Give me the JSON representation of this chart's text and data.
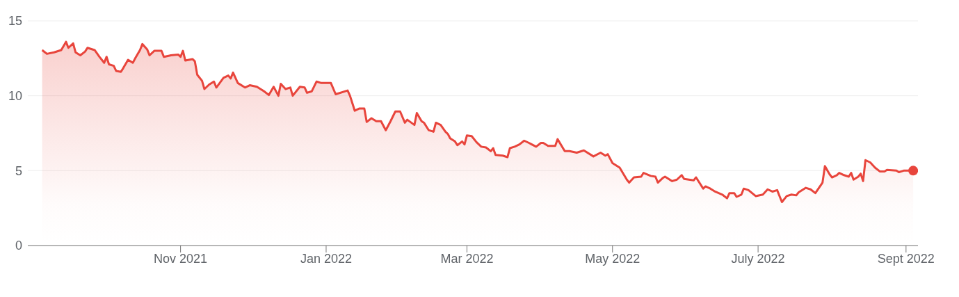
{
  "chart_data": {
    "type": "area",
    "xlim": [
      "2021-08-29",
      "2022-09-06"
    ],
    "ylim": [
      0,
      15
    ],
    "yticks": [
      0,
      5,
      10,
      15
    ],
    "xticks": [
      {
        "value": "2021-11-01",
        "label": "Nov 2021"
      },
      {
        "value": "2022-01-01",
        "label": "Jan 2022"
      },
      {
        "value": "2022-03-01",
        "label": "Mar 2022"
      },
      {
        "value": "2022-05-01",
        "label": "May 2022"
      },
      {
        "value": "2022-07-01",
        "label": "July 2022"
      },
      {
        "value": "2022-09-01",
        "label": "Sept 2022"
      }
    ],
    "grid": "y",
    "series": [
      {
        "color": "#e8453c",
        "x": [
          "2021-09-04",
          "2021-09-06",
          "2021-09-09",
          "2021-09-12",
          "2021-09-14",
          "2021-09-15",
          "2021-09-17",
          "2021-09-18",
          "2021-09-20",
          "2021-09-22",
          "2021-09-23",
          "2021-09-26",
          "2021-09-28",
          "2021-09-30",
          "2021-10-01",
          "2021-10-02",
          "2021-10-04",
          "2021-10-05",
          "2021-10-07",
          "2021-10-08",
          "2021-10-10",
          "2021-10-12",
          "2021-10-13",
          "2021-10-15",
          "2021-10-16",
          "2021-10-18",
          "2021-10-19",
          "2021-10-21",
          "2021-10-24",
          "2021-10-25",
          "2021-10-28",
          "2021-10-31",
          "2021-11-01",
          "2021-11-02",
          "2021-11-03",
          "2021-11-06",
          "2021-11-07",
          "2021-11-08",
          "2021-11-10",
          "2021-11-11",
          "2021-11-13",
          "2021-11-15",
          "2021-11-16",
          "2021-11-19",
          "2021-11-21",
          "2021-11-22",
          "2021-11-23",
          "2021-11-25",
          "2021-11-28",
          "2021-11-30",
          "2021-12-03",
          "2021-12-06",
          "2021-12-08",
          "2021-12-10",
          "2021-12-12",
          "2021-12-13",
          "2021-12-15",
          "2021-12-17",
          "2021-12-18",
          "2021-12-21",
          "2021-12-23",
          "2021-12-24",
          "2021-12-26",
          "2021-12-28",
          "2021-12-30",
          "2022-01-03",
          "2022-01-05",
          "2022-01-10",
          "2022-01-11",
          "2022-01-13",
          "2022-01-15",
          "2022-01-17",
          "2022-01-18",
          "2022-01-20",
          "2022-01-22",
          "2022-01-24",
          "2022-01-26",
          "2022-01-28",
          "2022-01-30",
          "2022-02-01",
          "2022-02-03",
          "2022-02-04",
          "2022-02-07",
          "2022-02-08",
          "2022-02-10",
          "2022-02-11",
          "2022-02-13",
          "2022-02-15",
          "2022-02-16",
          "2022-02-18",
          "2022-02-20",
          "2022-02-21",
          "2022-02-22",
          "2022-02-24",
          "2022-02-25",
          "2022-02-27",
          "2022-02-28",
          "2022-03-01",
          "2022-03-03",
          "2022-03-05",
          "2022-03-07",
          "2022-03-09",
          "2022-03-11",
          "2022-03-12",
          "2022-03-13",
          "2022-03-16",
          "2022-03-18",
          "2022-03-19",
          "2022-03-21",
          "2022-03-23",
          "2022-03-25",
          "2022-03-27",
          "2022-03-30",
          "2022-04-01",
          "2022-04-02",
          "2022-04-04",
          "2022-04-07",
          "2022-04-08",
          "2022-04-11",
          "2022-04-13",
          "2022-04-16",
          "2022-04-19",
          "2022-04-23",
          "2022-04-26",
          "2022-04-28",
          "2022-04-29",
          "2022-05-01",
          "2022-05-04",
          "2022-05-07",
          "2022-05-08",
          "2022-05-10",
          "2022-05-13",
          "2022-05-14",
          "2022-05-17",
          "2022-05-19",
          "2022-05-20",
          "2022-05-22",
          "2022-05-23",
          "2022-05-26",
          "2022-05-28",
          "2022-05-30",
          "2022-05-31",
          "2022-06-04",
          "2022-06-05",
          "2022-06-08",
          "2022-06-09",
          "2022-06-11",
          "2022-06-13",
          "2022-06-16",
          "2022-06-18",
          "2022-06-19",
          "2022-06-21",
          "2022-06-22",
          "2022-06-24",
          "2022-06-25",
          "2022-06-27",
          "2022-06-30",
          "2022-07-03",
          "2022-07-05",
          "2022-07-07",
          "2022-07-09",
          "2022-07-10",
          "2022-07-11",
          "2022-07-13",
          "2022-07-15",
          "2022-07-17",
          "2022-07-18",
          "2022-07-21",
          "2022-07-23",
          "2022-07-25",
          "2022-07-28",
          "2022-07-29",
          "2022-07-31",
          "2022-08-01",
          "2022-08-03",
          "2022-08-04",
          "2022-08-06",
          "2022-08-08",
          "2022-08-09",
          "2022-08-10",
          "2022-08-12",
          "2022-08-13",
          "2022-08-14",
          "2022-08-15",
          "2022-08-17",
          "2022-08-19",
          "2022-08-21",
          "2022-08-23",
          "2022-08-24",
          "2022-08-28",
          "2022-08-29",
          "2022-08-31",
          "2022-09-02",
          "2022-09-04"
        ],
        "values": [
          13.05,
          12.8,
          12.9,
          13.05,
          13.6,
          13.2,
          13.5,
          12.9,
          12.7,
          12.95,
          13.2,
          13.05,
          12.6,
          12.2,
          12.6,
          12.1,
          12.0,
          11.66,
          11.6,
          11.85,
          12.4,
          12.2,
          12.5,
          13.05,
          13.45,
          13.1,
          12.7,
          13.0,
          13.0,
          12.6,
          12.7,
          12.75,
          12.6,
          13.0,
          12.35,
          12.45,
          12.3,
          11.4,
          11.0,
          10.45,
          10.75,
          10.95,
          10.55,
          11.2,
          11.35,
          11.15,
          11.55,
          10.85,
          10.55,
          10.7,
          10.6,
          10.3,
          10.05,
          10.6,
          10.0,
          10.8,
          10.45,
          10.55,
          10.0,
          10.6,
          10.55,
          10.2,
          10.3,
          10.95,
          10.85,
          10.85,
          10.1,
          10.35,
          10.0,
          9.0,
          9.15,
          9.15,
          8.25,
          8.5,
          8.3,
          8.3,
          7.7,
          8.3,
          8.95,
          8.95,
          8.2,
          8.4,
          8.05,
          8.85,
          8.3,
          8.2,
          7.7,
          7.6,
          8.2,
          8.05,
          7.6,
          7.45,
          7.15,
          6.95,
          6.7,
          6.95,
          6.75,
          7.35,
          7.3,
          6.9,
          6.6,
          6.55,
          6.3,
          6.5,
          6.05,
          6.0,
          5.9,
          6.5,
          6.6,
          6.75,
          7.0,
          6.85,
          6.6,
          6.85,
          6.85,
          6.65,
          6.65,
          7.1,
          6.3,
          6.3,
          6.2,
          6.35,
          5.95,
          6.2,
          6.0,
          6.1,
          5.5,
          5.2,
          4.4,
          4.2,
          4.55,
          4.6,
          4.85,
          4.65,
          4.6,
          4.2,
          4.5,
          4.6,
          4.3,
          4.4,
          4.7,
          4.45,
          4.35,
          4.55,
          3.8,
          3.95,
          3.8,
          3.6,
          3.4,
          3.15,
          3.5,
          3.5,
          3.25,
          3.4,
          3.8,
          3.7,
          3.3,
          3.4,
          3.75,
          3.6,
          3.7,
          3.3,
          2.9,
          3.3,
          3.4,
          3.35,
          3.55,
          3.85,
          3.75,
          3.5,
          4.2,
          5.3,
          4.75,
          4.55,
          4.7,
          4.85,
          4.7,
          4.6,
          4.85,
          4.4,
          4.6,
          4.8,
          4.3,
          5.7,
          5.55,
          5.2,
          4.95,
          4.95,
          5.05,
          5.0,
          4.9,
          5.0,
          5.0,
          5.0
        ]
      },
      {
        "type": "scatter",
        "color": "#e8453c",
        "x": [
          "2022-09-04"
        ],
        "values": [
          5.0
        ]
      }
    ]
  }
}
